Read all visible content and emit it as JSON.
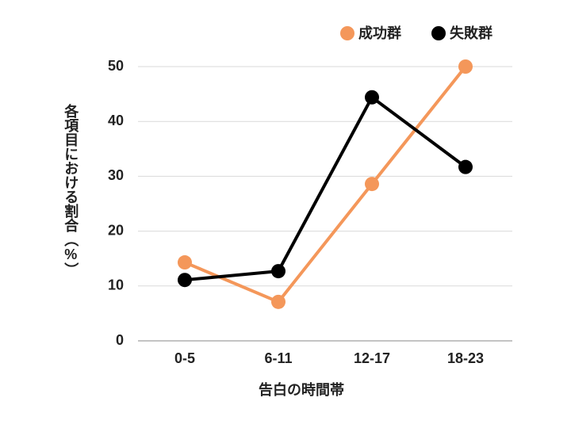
{
  "chart_data": {
    "type": "line",
    "x_label": "告白の時間帯",
    "y_label": "各項目における割合（%）",
    "categories": [
      "0-5",
      "6-11",
      "12-17",
      "18-23"
    ],
    "series": [
      {
        "name": "成功群",
        "color": "#f4975a",
        "values": [
          14.3,
          7.1,
          28.6,
          50.0
        ]
      },
      {
        "name": "失敗群",
        "color": "#000000",
        "values": [
          11.1,
          12.7,
          44.4,
          31.7
        ]
      }
    ],
    "ylim": [
      0,
      50
    ],
    "yticks": [
      0,
      10,
      20,
      30,
      40,
      50
    ],
    "grid": true,
    "legend": "top-right"
  }
}
